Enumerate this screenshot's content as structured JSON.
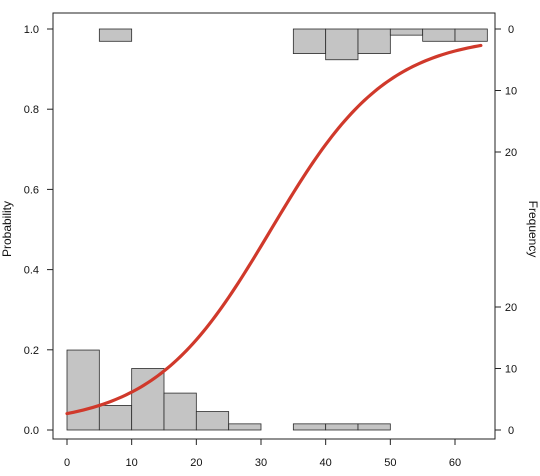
{
  "chart_data": {
    "type": "histogram-logistic",
    "ylabel": "Probability",
    "y2label": "Frequency",
    "xlim": [
      -2,
      66
    ],
    "ylim": [
      -0.03,
      1.04
    ],
    "x_ticks": [
      "0",
      "10",
      "20",
      "30",
      "40",
      "50",
      "60"
    ],
    "y_ticks": [
      "0.0",
      "0.2",
      "0.4",
      "0.6",
      "0.8",
      "1.0"
    ],
    "freq_ticks_bottom": [
      "0",
      "10",
      "20"
    ],
    "freq_ticks_top": [
      "0",
      "10",
      "20"
    ],
    "bin_width": 5,
    "bottom_histogram": [
      {
        "x0": 0,
        "count": 13
      },
      {
        "x0": 5,
        "count": 4
      },
      {
        "x0": 10,
        "count": 10
      },
      {
        "x0": 15,
        "count": 6
      },
      {
        "x0": 20,
        "count": 3
      },
      {
        "x0": 25,
        "count": 1
      },
      {
        "x0": 35,
        "count": 1
      },
      {
        "x0": 40,
        "count": 1
      },
      {
        "x0": 45,
        "count": 1
      }
    ],
    "top_histogram": [
      {
        "x0": 5,
        "count": 2
      },
      {
        "x0": 35,
        "count": 4
      },
      {
        "x0": 40,
        "count": 5
      },
      {
        "x0": 45,
        "count": 4
      },
      {
        "x0": 50,
        "count": 1
      },
      {
        "x0": 55,
        "count": 2
      },
      {
        "x0": 60,
        "count": 2
      }
    ],
    "curve": {
      "kind": "logistic",
      "x_range": [
        0,
        64
      ],
      "points": [
        [
          0,
          0.012
        ],
        [
          10,
          0.045
        ],
        [
          20,
          0.16
        ],
        [
          30,
          0.45
        ],
        [
          40,
          0.77
        ],
        [
          50,
          0.92
        ],
        [
          60,
          0.97
        ],
        [
          64,
          0.98
        ]
      ],
      "color": "#d0392b"
    },
    "bar_fill": "#c4c4c4",
    "bar_stroke": "#2b2b2b"
  }
}
